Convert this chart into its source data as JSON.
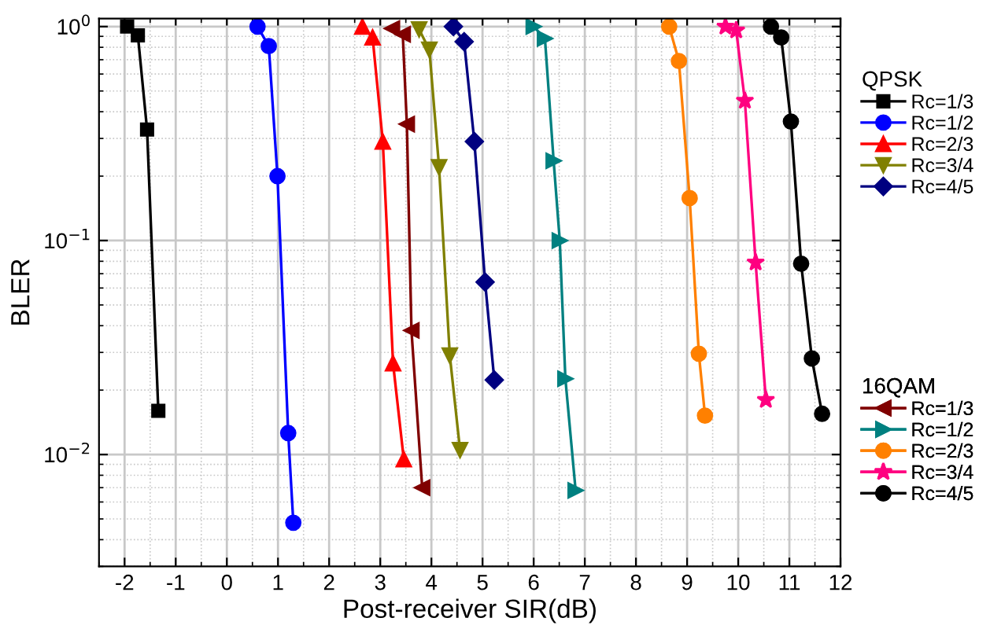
{
  "chart_data": {
    "type": "line",
    "xlabel": "Post-receiver SIR(dB)",
    "ylabel": "BLER",
    "log": "y",
    "xlim": [
      -2.5,
      12
    ],
    "xticks": [
      -2,
      -1,
      0,
      1,
      2,
      3,
      4,
      5,
      6,
      7,
      8,
      9,
      10,
      11,
      12
    ],
    "ylim": [
      0.003,
      1.09
    ],
    "yticks": [
      {
        "value": 0.01,
        "label": "10$^{−2}$"
      },
      {
        "value": 0.1,
        "label": "10$^{−1}$"
      },
      {
        "value": 1,
        "label": "10$^{0}$"
      }
    ],
    "grid": true,
    "legend": "right",
    "legend_title": [
      "QPSK",
      "16QAM"
    ],
    "series": [
      {
        "name": "Rc=1/3",
        "color": "#000000",
        "marker": "square",
        "x": [
          -1.95,
          -1.74,
          -1.56,
          -1.34
        ],
        "values": [
          1.0,
          0.91,
          0.33,
          0.016
        ]
      },
      {
        "name": "Rc=1/2",
        "color": "#0000ff",
        "marker": "circle",
        "x": [
          0.6,
          0.82,
          0.99,
          1.2,
          1.3
        ],
        "values": [
          1.0,
          0.81,
          0.2,
          0.0126,
          0.0048
        ]
      },
      {
        "name": "Rc=2/3",
        "color": "#ff0000",
        "marker": "triangle",
        "x": [
          2.65,
          2.85,
          3.05,
          3.25,
          3.46
        ],
        "values": [
          1.0,
          0.89,
          0.29,
          0.0267,
          0.0095
        ]
      },
      {
        "name": "Rc=3/4",
        "color": "#808000",
        "marker": "triangle_down",
        "x": [
          3.76,
          3.96,
          4.15,
          4.36,
          4.56
        ],
        "values": [
          0.97,
          0.78,
          0.22,
          0.029,
          0.0105
        ]
      },
      {
        "name": "Rc=4/5",
        "color": "#000080",
        "marker": "diamond",
        "x": [
          4.43,
          4.64,
          4.84,
          5.05,
          5.23
        ],
        "values": [
          1.0,
          0.85,
          0.29,
          0.064,
          0.0223
        ]
      },
      {
        "name": "Rc=1/3",
        "color": "#800000",
        "marker": "triangle_left",
        "x": [
          3.23,
          3.44,
          3.52,
          3.61,
          3.82
        ],
        "values": [
          0.98,
          0.92,
          0.35,
          0.038,
          0.007
        ]
      },
      {
        "name": "Rc=1/2",
        "color": "#008080",
        "marker": "triangle_right",
        "x": [
          6.0,
          6.22,
          6.39,
          6.51,
          6.62,
          6.82
        ],
        "values": [
          1.0,
          0.88,
          0.236,
          0.1,
          0.0226,
          0.0068
        ]
      },
      {
        "name": "Rc=2/3",
        "color": "#ff8000",
        "marker": "circle",
        "x": [
          8.65,
          8.84,
          9.05,
          9.23,
          9.35
        ],
        "values": [
          1.0,
          0.69,
          0.158,
          0.0296,
          0.0152
        ]
      },
      {
        "name": "Rc=3/4",
        "color": "#ff0080",
        "marker": "star",
        "x": [
          9.75,
          9.96,
          10.13,
          10.34,
          10.54
        ],
        "values": [
          1.0,
          0.96,
          0.45,
          0.079,
          0.018
        ]
      },
      {
        "name": "Rc=4/5",
        "color": "#000000",
        "marker": "circle",
        "x": [
          10.64,
          10.84,
          11.03,
          11.23,
          11.44,
          11.64
        ],
        "values": [
          1.0,
          0.89,
          0.36,
          0.078,
          0.0281,
          0.0155
        ]
      }
    ]
  }
}
